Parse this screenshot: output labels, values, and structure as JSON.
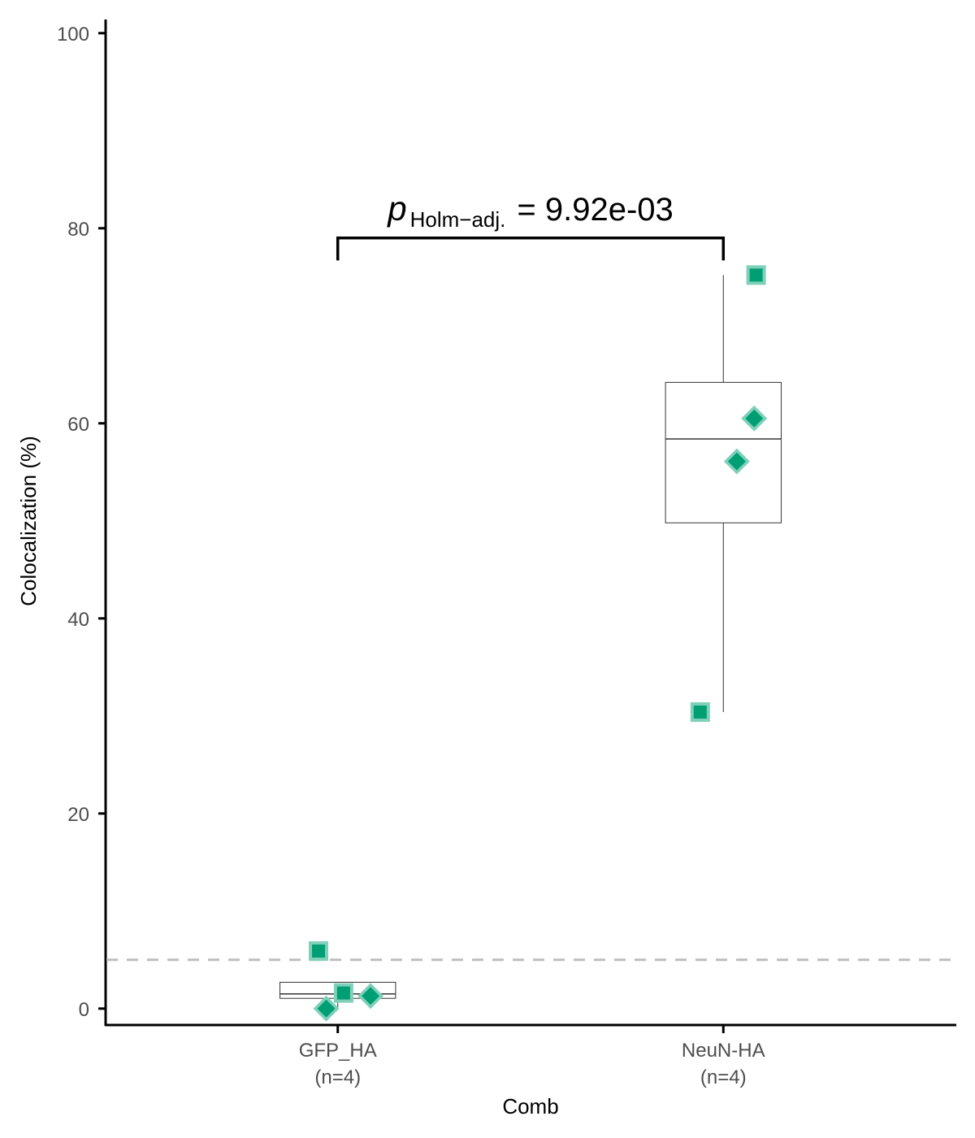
{
  "chart_data": {
    "type": "box",
    "title": "",
    "xlabel": "Comb",
    "ylabel": "Colocalization (%)",
    "ylim": [
      -1.6,
      101.4
    ],
    "yticks": [
      0,
      20,
      40,
      60,
      80,
      100
    ],
    "grid": false,
    "legend": "none",
    "reference_line": {
      "y": 5,
      "style": "dashed",
      "color": "#bebebe"
    },
    "point_color": "#009e73",
    "point_halo_color": "#7fd0b9",
    "categories": [
      {
        "name": "GFP_HA",
        "n_label": "(n=4)"
      },
      {
        "name": "NeuN-HA",
        "n_label": "(n=4)"
      }
    ],
    "boxes": [
      {
        "category": "GFP_HA",
        "q1": 1.05,
        "median": 1.5,
        "q3": 2.7,
        "whisker_low": 0.0,
        "whisker_high": 2.7
      },
      {
        "category": "NeuN-HA",
        "q1": 49.8,
        "median": 58.4,
        "q3": 64.2,
        "whisker_low": 30.4,
        "whisker_high": 75.2
      }
    ],
    "points": [
      {
        "category": "GFP_HA",
        "jitter": -0.05,
        "y": 5.9,
        "shape": "square"
      },
      {
        "category": "GFP_HA",
        "jitter": 0.015,
        "y": 1.6,
        "shape": "square"
      },
      {
        "category": "GFP_HA",
        "jitter": -0.03,
        "y": 0.0,
        "shape": "diamond"
      },
      {
        "category": "GFP_HA",
        "jitter": 0.085,
        "y": 1.3,
        "shape": "diamond"
      },
      {
        "category": "NeuN-HA",
        "jitter": 0.085,
        "y": 75.2,
        "shape": "square"
      },
      {
        "category": "NeuN-HA",
        "jitter": -0.06,
        "y": 30.4,
        "shape": "square"
      },
      {
        "category": "NeuN-HA",
        "jitter": 0.08,
        "y": 60.5,
        "shape": "diamond"
      },
      {
        "category": "NeuN-HA",
        "jitter": 0.035,
        "y": 56.1,
        "shape": "diamond"
      }
    ],
    "comparison": {
      "from": "GFP_HA",
      "to": "NeuN-HA",
      "bracket_y": 79.0,
      "bracket_tip_y": 76.7,
      "label_symbol": "p",
      "label_subscript": "Holm−adj.",
      "label_value": "= 9.92e-03"
    }
  }
}
